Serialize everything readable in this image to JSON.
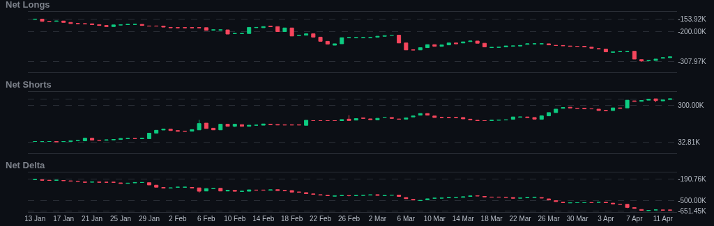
{
  "chart_data": [
    {
      "type": "candlestick",
      "title": "Net Longs",
      "x": [
        "--01-13",
        "--01-14",
        "--01-15",
        "--01-16",
        "--01-17",
        "--01-18",
        "--01-19",
        "--01-20",
        "--01-21",
        "--01-22",
        "--01-23",
        "--01-24",
        "--01-25",
        "--01-26",
        "--01-27",
        "--01-28",
        "--01-29",
        "--01-30",
        "--01-31",
        "--02-01",
        "--02-02",
        "--02-03",
        "--02-04",
        "--02-05",
        "--02-06",
        "--02-07",
        "--02-08",
        "--02-09",
        "--02-10",
        "--02-11",
        "--02-12",
        "--02-13",
        "--02-14",
        "--02-15",
        "--02-16",
        "--02-17",
        "--02-18",
        "--02-19",
        "--02-20",
        "--02-21",
        "--02-22",
        "--02-23",
        "--02-24",
        "--02-25",
        "--02-26",
        "--02-27",
        "--02-28",
        "--03-01",
        "--03-02",
        "--03-03",
        "--03-04",
        "--03-05",
        "--03-06",
        "--03-07",
        "--03-08",
        "--03-09",
        "--03-10",
        "--03-11",
        "--03-12",
        "--03-13",
        "--03-14",
        "--03-15",
        "--03-16",
        "--03-17",
        "--03-18",
        "--03-19",
        "--03-20",
        "--03-21",
        "--03-22",
        "--03-23",
        "--03-24",
        "--03-25",
        "--03-26",
        "--03-27",
        "--03-28",
        "--03-29",
        "--03-30",
        "--03-31",
        "--04-01",
        "--04-02",
        "--04-03",
        "--04-04",
        "--04-05",
        "--04-06",
        "--04-07",
        "--04-08",
        "--04-09",
        "--04-10",
        "--04-11",
        "--04-12"
      ],
      "ohlc": [
        [
          -155,
          -153.92,
          -156,
          -154
        ],
        [
          -154,
          -154,
          -163,
          -162
        ],
        [
          -162,
          -161,
          -163,
          -162
        ],
        [
          -162,
          -160,
          -162,
          -161
        ],
        [
          -161,
          -161,
          -166,
          -166
        ],
        [
          -166,
          -166,
          -170,
          -170
        ],
        [
          -170,
          -169,
          -171,
          -170
        ],
        [
          -171,
          -170,
          -172,
          -171
        ],
        [
          -171,
          -171,
          -174,
          -174
        ],
        [
          -174,
          -174,
          -177,
          -177
        ],
        [
          -177,
          -177,
          -181,
          -181
        ],
        [
          -181,
          -175,
          -181,
          -175
        ],
        [
          -175,
          -174,
          -176,
          -175
        ],
        [
          -174,
          -173,
          -174,
          -173
        ],
        [
          -173,
          -172,
          -174,
          -173
        ],
        [
          -173,
          -173,
          -177,
          -177
        ],
        [
          -179,
          -178,
          -179,
          -179
        ],
        [
          -179,
          -178,
          -180,
          -179
        ],
        [
          -179,
          -179,
          -183,
          -183
        ],
        [
          -184,
          -184,
          -185,
          -185
        ],
        [
          -185,
          -184,
          -186,
          -185
        ],
        [
          -185,
          -184,
          -186,
          -185
        ],
        [
          -185,
          -184,
          -186,
          -185
        ],
        [
          -185,
          -184,
          -186,
          -185
        ],
        [
          -185,
          -185,
          -194,
          -194
        ],
        [
          -193,
          -192,
          -194,
          -193
        ],
        [
          -193,
          -192,
          -194,
          -193
        ],
        [
          -193,
          -193,
          -208,
          -208
        ],
        [
          -206,
          -205,
          -207,
          -206
        ],
        [
          -206,
          -205,
          -207,
          -206
        ],
        [
          -206,
          -184,
          -206,
          -184
        ],
        [
          -185,
          -184,
          -185,
          -184
        ],
        [
          -185,
          -181,
          -185,
          -181
        ],
        [
          -179,
          -179,
          -181,
          -181
        ],
        [
          -181,
          -181,
          -199,
          -199
        ],
        [
          -199,
          -186,
          -199,
          -186
        ],
        [
          -186,
          -186,
          -215,
          -215
        ],
        [
          -213,
          -212,
          -213,
          -212
        ],
        [
          -212,
          -207,
          -212,
          -207
        ],
        [
          -207,
          -207,
          -219,
          -219
        ],
        [
          -219,
          -219,
          -234,
          -234
        ],
        [
          -234,
          -234,
          -244,
          -244
        ],
        [
          -248,
          -243,
          -248,
          -243
        ],
        [
          -243,
          -221,
          -243,
          -221
        ],
        [
          -221,
          -220,
          -222,
          -221
        ],
        [
          -221,
          -220,
          -222,
          -221
        ],
        [
          -221,
          -220,
          -222,
          -221
        ],
        [
          -221,
          -220,
          -222,
          -221
        ],
        [
          -219,
          -216,
          -219,
          -216
        ],
        [
          -216,
          -214,
          -216,
          -214
        ],
        [
          -212,
          -211,
          -213,
          -212
        ],
        [
          -212,
          -212,
          -240,
          -240
        ],
        [
          -240,
          -240,
          -265,
          -265
        ],
        [
          -265,
          -264,
          -266,
          -265
        ],
        [
          -265,
          -257,
          -265,
          -257
        ],
        [
          -257,
          -246,
          -257,
          -246
        ],
        [
          -246,
          -246,
          -252,
          -252
        ],
        [
          -252,
          -247,
          -252,
          -247
        ],
        [
          -247,
          -240,
          -247,
          -240
        ],
        [
          -240,
          -240,
          -243,
          -243
        ],
        [
          -240,
          -236,
          -240,
          -236
        ],
        [
          -235,
          -233,
          -235,
          -233
        ],
        [
          -233,
          -233,
          -241,
          -241
        ],
        [
          -241,
          -241,
          -254,
          -254
        ],
        [
          -257,
          -256,
          -257,
          -256
        ],
        [
          -256,
          -255,
          -256,
          -255
        ],
        [
          -254,
          -251,
          -254,
          -251
        ],
        [
          -251,
          -250,
          -252,
          -251
        ],
        [
          -251,
          -249,
          -251,
          -249
        ],
        [
          -245,
          -243,
          -245,
          -243
        ],
        [
          -243,
          -242,
          -244,
          -243
        ],
        [
          -243,
          -242,
          -244,
          -243
        ],
        [
          -243,
          -243,
          -247,
          -247
        ],
        [
          -249,
          -248,
          -250,
          -249
        ],
        [
          -249,
          -249,
          -250,
          -250
        ],
        [
          -251,
          -251,
          -252,
          -252
        ],
        [
          -252,
          -251,
          -253,
          -252
        ],
        [
          -252,
          -252,
          -254,
          -254
        ],
        [
          -255,
          -255,
          -259,
          -259
        ],
        [
          -261,
          -260,
          -262,
          -261
        ],
        [
          -262,
          -262,
          -272,
          -272
        ],
        [
          -274,
          -272,
          -274,
          -272
        ],
        [
          -271,
          -270,
          -272,
          -271
        ],
        [
          -271,
          -270,
          -272,
          -271
        ],
        [
          -270,
          -270,
          -298,
          -298
        ],
        [
          -300,
          -300,
          -307.97,
          -305
        ],
        [
          -303,
          -302,
          -304,
          -303
        ],
        [
          -303,
          -298,
          -303,
          -298
        ],
        [
          -295,
          -293,
          -295,
          -293
        ],
        [
          -293,
          -290,
          -293,
          -290
        ]
      ],
      "xlim": [
        "--01-12",
        "--04-13"
      ],
      "xticks": [
        {
          "value": "--01-13",
          "label": "13 Jan"
        },
        {
          "value": "--01-17",
          "label": "17 Jan"
        },
        {
          "value": "--01-21",
          "label": "21 Jan"
        },
        {
          "value": "--01-25",
          "label": "25 Jan"
        },
        {
          "value": "--01-29",
          "label": "29 Jan"
        },
        {
          "value": "--02-02",
          "label": "2 Feb"
        },
        {
          "value": "--02-06",
          "label": "6 Feb"
        },
        {
          "value": "--02-10",
          "label": "10 Feb"
        },
        {
          "value": "--02-14",
          "label": "14 Feb"
        },
        {
          "value": "--02-18",
          "label": "18 Feb"
        },
        {
          "value": "--02-22",
          "label": "22 Feb"
        },
        {
          "value": "--02-26",
          "label": "26 Feb"
        },
        {
          "value": "--03-02",
          "label": "2 Mar"
        },
        {
          "value": "--03-06",
          "label": "6 Mar"
        },
        {
          "value": "--03-10",
          "label": "10 Mar"
        },
        {
          "value": "--03-14",
          "label": "14 Mar"
        },
        {
          "value": "--03-18",
          "label": "18 Mar"
        },
        {
          "value": "--03-22",
          "label": "22 Mar"
        },
        {
          "value": "--03-26",
          "label": "26 Mar"
        },
        {
          "value": "--03-30",
          "label": "30 Mar"
        },
        {
          "value": "--04-03",
          "label": "3 Apr"
        },
        {
          "value": "--04-07",
          "label": "7 Apr"
        },
        {
          "value": "--04-11",
          "label": "11 Apr"
        }
      ],
      "ylim": [
        -345,
        -128
      ],
      "yticks": [
        {
          "value": -153.92,
          "label": "-153.92K"
        },
        {
          "value": -200,
          "label": "-200.00K"
        },
        {
          "value": -307.97,
          "label": "-307.97K"
        }
      ],
      "grid": "y",
      "tick_labels": "y"
    },
    {
      "type": "candlestick",
      "title": "Net Shorts",
      "x": [
        "--01-13",
        "--01-14",
        "--01-15",
        "--01-16",
        "--01-17",
        "--01-18",
        "--01-19",
        "--01-20",
        "--01-21",
        "--01-22",
        "--01-23",
        "--01-24",
        "--01-25",
        "--01-26",
        "--01-27",
        "--01-28",
        "--01-29",
        "--01-30",
        "--01-31",
        "--02-01",
        "--02-02",
        "--02-03",
        "--02-04",
        "--02-05",
        "--02-06",
        "--02-07",
        "--02-08",
        "--02-09",
        "--02-10",
        "--02-11",
        "--02-12",
        "--02-13",
        "--02-14",
        "--02-15",
        "--02-16",
        "--02-17",
        "--02-18",
        "--02-19",
        "--02-20",
        "--02-21",
        "--02-22",
        "--02-23",
        "--02-24",
        "--02-25",
        "--02-26",
        "--02-27",
        "--02-28",
        "--03-01",
        "--03-02",
        "--03-03",
        "--03-04",
        "--03-05",
        "--03-06",
        "--03-07",
        "--03-08",
        "--03-09",
        "--03-10",
        "--03-11",
        "--03-12",
        "--03-13",
        "--03-14",
        "--03-15",
        "--03-16",
        "--03-17",
        "--03-18",
        "--03-19",
        "--03-20",
        "--03-21",
        "--03-22",
        "--03-23",
        "--03-24",
        "--03-25",
        "--03-26",
        "--03-27",
        "--03-28",
        "--03-29",
        "--03-30",
        "--03-31",
        "--04-01",
        "--04-02",
        "--04-03",
        "--04-04",
        "--04-05",
        "--04-06",
        "--04-07",
        "--04-08",
        "--04-09",
        "--04-10",
        "--04-11",
        "--04-12"
      ],
      "ohlc": [
        [
          38,
          39,
          37,
          38
        ],
        [
          38,
          39,
          37,
          38
        ],
        [
          38,
          39,
          37,
          38
        ],
        [
          38,
          38,
          36,
          36
        ],
        [
          37,
          38,
          37,
          38
        ],
        [
          38,
          43,
          38,
          43
        ],
        [
          44,
          45,
          43,
          45
        ],
        [
          43,
          66,
          43,
          62
        ],
        [
          62,
          62,
          48,
          48
        ],
        [
          48,
          48,
          47,
          47
        ],
        [
          47,
          50,
          47,
          50
        ],
        [
          50,
          53,
          50,
          53
        ],
        [
          53,
          63,
          53,
          60
        ],
        [
          60,
          61,
          59,
          60
        ],
        [
          60,
          60,
          59,
          59
        ],
        [
          59,
          61,
          59,
          61
        ],
        [
          59,
          99,
          59,
          99
        ],
        [
          99,
          120,
          99,
          120
        ],
        [
          122,
          128,
          122,
          128
        ],
        [
          128,
          128,
          118,
          118
        ],
        [
          118,
          118,
          113,
          113
        ],
        [
          113,
          114,
          112,
          113
        ],
        [
          113,
          125,
          113,
          125
        ],
        [
          123,
          196,
          123,
          169
        ],
        [
          172,
          172,
          133,
          133
        ],
        [
          135,
          135,
          123,
          123
        ],
        [
          123,
          164,
          123,
          164
        ],
        [
          164,
          164,
          149,
          149
        ],
        [
          149,
          164,
          144,
          164
        ],
        [
          161,
          161,
          149,
          149
        ],
        [
          149,
          157,
          149,
          157
        ],
        [
          157,
          158,
          156,
          157
        ],
        [
          157,
          166,
          157,
          166
        ],
        [
          164,
          164,
          162,
          162
        ],
        [
          162,
          162,
          159,
          159
        ],
        [
          159,
          160,
          158,
          159
        ],
        [
          159,
          160,
          158,
          159
        ],
        [
          159,
          160,
          158,
          159
        ],
        [
          156,
          193,
          156,
          193
        ],
        [
          190,
          191,
          189,
          190
        ],
        [
          190,
          191,
          189,
          190
        ],
        [
          190,
          191,
          189,
          190
        ],
        [
          190,
          191,
          189,
          190
        ],
        [
          190,
          198,
          190,
          198
        ],
        [
          201,
          230,
          191,
          191
        ],
        [
          194,
          205,
          194,
          205
        ],
        [
          210,
          210,
          207,
          207
        ],
        [
          203,
          203,
          198,
          198
        ],
        [
          196,
          207,
          196,
          207
        ],
        [
          215,
          216,
          214,
          215
        ],
        [
          213,
          213,
          207,
          207
        ],
        [
          201,
          202,
          200,
          201
        ],
        [
          201,
          210,
          201,
          210
        ],
        [
          217,
          224,
          217,
          224
        ],
        [
          230,
          242,
          230,
          242
        ],
        [
          242,
          242,
          230,
          230
        ],
        [
          224,
          224,
          213,
          213
        ],
        [
          213,
          214,
          212,
          213
        ],
        [
          213,
          214,
          212,
          213
        ],
        [
          213,
          214,
          212,
          213
        ],
        [
          213,
          213,
          203,
          203
        ],
        [
          201,
          201,
          196,
          196
        ],
        [
          193,
          193,
          190,
          190
        ],
        [
          190,
          191,
          189,
          190
        ],
        [
          191,
          193,
          191,
          193
        ],
        [
          193,
          195,
          193,
          195
        ],
        [
          195,
          196,
          195,
          196
        ],
        [
          200,
          217,
          200,
          217
        ],
        [
          215,
          217,
          215,
          217
        ],
        [
          217,
          217,
          213,
          213
        ],
        [
          213,
          213,
          201,
          201
        ],
        [
          200,
          225,
          200,
          225
        ],
        [
          225,
          249,
          225,
          249
        ],
        [
          249,
          274,
          249,
          274
        ],
        [
          280,
          285,
          280,
          285
        ],
        [
          288,
          288,
          283,
          283
        ],
        [
          281,
          281,
          280,
          280
        ],
        [
          280,
          280,
          276,
          276
        ],
        [
          276,
          277,
          275,
          276
        ],
        [
          274,
          274,
          264,
          264
        ],
        [
          264,
          265,
          263,
          264
        ],
        [
          264,
          283,
          264,
          283
        ],
        [
          283,
          283,
          280,
          280
        ],
        [
          283,
          339,
          283,
          339
        ],
        [
          334,
          334,
          331,
          331
        ],
        [
          331,
          337,
          331,
          337
        ],
        [
          339,
          346,
          339,
          346
        ],
        [
          349,
          349,
          325,
          336
        ],
        [
          334,
          341,
          334,
          341
        ],
        [
          344,
          349,
          344,
          349
        ]
      ],
      "xlim": [
        "--01-12",
        "--04-13"
      ],
      "xticks": [
        {
          "value": "--01-13",
          "label": "13 Jan"
        },
        {
          "value": "--01-17",
          "label": "17 Jan"
        },
        {
          "value": "--01-21",
          "label": "21 Jan"
        },
        {
          "value": "--01-25",
          "label": "25 Jan"
        },
        {
          "value": "--01-29",
          "label": "29 Jan"
        },
        {
          "value": "--02-02",
          "label": "2 Feb"
        },
        {
          "value": "--02-06",
          "label": "6 Feb"
        },
        {
          "value": "--02-10",
          "label": "10 Feb"
        },
        {
          "value": "--02-14",
          "label": "14 Feb"
        },
        {
          "value": "--02-18",
          "label": "18 Feb"
        },
        {
          "value": "--02-22",
          "label": "22 Feb"
        },
        {
          "value": "--02-26",
          "label": "26 Feb"
        },
        {
          "value": "--03-02",
          "label": "2 Mar"
        },
        {
          "value": "--03-06",
          "label": "6 Mar"
        },
        {
          "value": "--03-10",
          "label": "10 Mar"
        },
        {
          "value": "--03-14",
          "label": "14 Mar"
        },
        {
          "value": "--03-18",
          "label": "18 Mar"
        },
        {
          "value": "--03-22",
          "label": "22 Mar"
        },
        {
          "value": "--03-26",
          "label": "26 Mar"
        },
        {
          "value": "--03-30",
          "label": "30 Mar"
        },
        {
          "value": "--04-03",
          "label": "3 Apr"
        },
        {
          "value": "--04-07",
          "label": "7 Apr"
        },
        {
          "value": "--04-11",
          "label": "11 Apr"
        }
      ],
      "ylim": [
        -45,
        400
      ],
      "yticks": [
        {
          "value": 32.81,
          "label": "32.81K"
        },
        {
          "value": 300,
          "label": "300.00K"
        },
        {
          "value": 349,
          "label": null
        }
      ],
      "grid": "y",
      "tick_labels": "y"
    },
    {
      "type": "candlestick",
      "title": "Net Delta",
      "x": [
        "--01-13",
        "--01-14",
        "--01-15",
        "--01-16",
        "--01-17",
        "--01-18",
        "--01-19",
        "--01-20",
        "--01-21",
        "--01-22",
        "--01-23",
        "--01-24",
        "--01-25",
        "--01-26",
        "--01-27",
        "--01-28",
        "--01-29",
        "--01-30",
        "--01-31",
        "--02-01",
        "--02-02",
        "--02-03",
        "--02-04",
        "--02-05",
        "--02-06",
        "--02-07",
        "--02-08",
        "--02-09",
        "--02-10",
        "--02-11",
        "--02-12",
        "--02-13",
        "--02-14",
        "--02-15",
        "--02-16",
        "--02-17",
        "--02-18",
        "--02-19",
        "--02-20",
        "--02-21",
        "--02-22",
        "--02-23",
        "--02-24",
        "--02-25",
        "--02-26",
        "--02-27",
        "--02-28",
        "--03-01",
        "--03-02",
        "--03-03",
        "--03-04",
        "--03-05",
        "--03-06",
        "--03-07",
        "--03-08",
        "--03-09",
        "--03-10",
        "--03-11",
        "--03-12",
        "--03-13",
        "--03-14",
        "--03-15",
        "--03-16",
        "--03-17",
        "--03-18",
        "--03-19",
        "--03-20",
        "--03-21",
        "--03-22",
        "--03-23",
        "--03-24",
        "--03-25",
        "--03-26",
        "--03-27",
        "--03-28",
        "--03-29",
        "--03-30",
        "--03-31",
        "--04-01",
        "--04-02",
        "--04-03",
        "--04-04",
        "--04-05",
        "--04-06",
        "--04-07",
        "--04-08",
        "--04-09",
        "--04-10",
        "--04-11",
        "--04-12"
      ],
      "ohlc": [
        [
          -194,
          -190.76,
          -195,
          -193
        ],
        [
          -197,
          -197,
          -204,
          -204
        ],
        [
          -204,
          -204,
          -207,
          -207
        ],
        [
          -205,
          -204,
          -205,
          -204
        ],
        [
          -207,
          -207,
          -210,
          -210
        ],
        [
          -214,
          -214,
          -217,
          -217
        ],
        [
          -217,
          -217,
          -220,
          -220
        ],
        [
          -230,
          -230,
          -237,
          -234
        ],
        [
          -231,
          -230,
          -231,
          -230
        ],
        [
          -230,
          -230,
          -234,
          -234
        ],
        [
          -234,
          -233,
          -235,
          -234
        ],
        [
          -234,
          -233,
          -235,
          -234
        ],
        [
          -243,
          -243,
          -250,
          -250
        ],
        [
          -250,
          -247,
          -250,
          -247
        ],
        [
          -243,
          -237,
          -243,
          -237
        ],
        [
          -237,
          -236,
          -238,
          -237
        ],
        [
          -240,
          -240,
          -273,
          -273
        ],
        [
          -276,
          -276,
          -306,
          -306
        ],
        [
          -309,
          -309,
          -319,
          -319
        ],
        [
          -319,
          -316,
          -319,
          -316
        ],
        [
          -306,
          -305,
          -307,
          -306
        ],
        [
          -306,
          -305,
          -307,
          -306
        ],
        [
          -309,
          -309,
          -316,
          -316
        ],
        [
          -316,
          -316,
          -385,
          -365
        ],
        [
          -362,
          -322,
          -362,
          -326
        ],
        [
          -329,
          -326,
          -329,
          -326
        ],
        [
          -322,
          -322,
          -362,
          -362
        ],
        [
          -362,
          -352,
          -362,
          -352
        ],
        [
          -352,
          -352,
          -365,
          -365
        ],
        [
          -368,
          -365,
          -368,
          -365
        ],
        [
          -365,
          -345,
          -365,
          -345
        ],
        [
          -349,
          -348,
          -350,
          -349
        ],
        [
          -349,
          -348,
          -350,
          -349
        ],
        [
          -349,
          -345,
          -349,
          -345
        ],
        [
          -342,
          -342,
          -355,
          -355
        ],
        [
          -355,
          -354,
          -356,
          -355
        ],
        [
          -355,
          -355,
          -378,
          -378
        ],
        [
          -378,
          -377,
          -379,
          -378
        ],
        [
          -385,
          -385,
          -401,
          -401
        ],
        [
          -405,
          -405,
          -408,
          -408
        ],
        [
          -415,
          -415,
          -421,
          -421
        ],
        [
          -424,
          -424,
          -431,
          -431
        ],
        [
          -437,
          -434,
          -437,
          -434
        ],
        [
          -428,
          -424,
          -428,
          -428
        ],
        [
          -428,
          -428,
          -441,
          -431
        ],
        [
          -428,
          -427,
          -429,
          -428
        ],
        [
          -424,
          -423,
          -425,
          -424
        ],
        [
          -421,
          -418,
          -421,
          -418
        ],
        [
          -415,
          -415,
          -424,
          -424
        ],
        [
          -431,
          -428,
          -431,
          -428
        ],
        [
          -424,
          -421,
          -424,
          -421
        ],
        [
          -421,
          -421,
          -441,
          -441
        ],
        [
          -457,
          -457,
          -474,
          -474
        ],
        [
          -484,
          -484,
          -493,
          -493
        ],
        [
          -503,
          -500,
          -503,
          -500
        ],
        [
          -490,
          -477,
          -490,
          -477
        ],
        [
          -467,
          -466,
          -468,
          -467
        ],
        [
          -467,
          -464,
          -467,
          -464
        ],
        [
          -460,
          -457,
          -460,
          -457
        ],
        [
          -454,
          -453,
          -455,
          -454
        ],
        [
          -454,
          -447,
          -454,
          -447
        ],
        [
          -441,
          -434,
          -441,
          -434
        ],
        [
          -431,
          -431,
          -434,
          -434
        ],
        [
          -441,
          -441,
          -447,
          -447
        ],
        [
          -451,
          -450,
          -452,
          -451
        ],
        [
          -451,
          -450,
          -452,
          -451
        ],
        [
          -451,
          -451,
          -454,
          -454
        ],
        [
          -457,
          -457,
          -467,
          -467
        ],
        [
          -467,
          -464,
          -467,
          -464
        ],
        [
          -460,
          -457,
          -460,
          -457
        ],
        [
          -457,
          -451,
          -457,
          -451
        ],
        [
          -457,
          -457,
          -464,
          -464
        ],
        [
          -477,
          -477,
          -493,
          -493
        ],
        [
          -503,
          -503,
          -516,
          -516
        ],
        [
          -526,
          -526,
          -530,
          -530
        ],
        [
          -536,
          -533,
          -536,
          -533
        ],
        [
          -533,
          -532,
          -534,
          -533
        ],
        [
          -533,
          -532,
          -534,
          -533
        ],
        [
          -530,
          -530,
          -533,
          -533
        ],
        [
          -526,
          -525,
          -527,
          -526
        ],
        [
          -526,
          -526,
          -533,
          -533
        ],
        [
          -539,
          -539,
          -549,
          -549
        ],
        [
          -553,
          -553,
          -556,
          -556
        ],
        [
          -556,
          -556,
          -612,
          -602
        ],
        [
          -605,
          -605,
          -615,
          -615
        ],
        [
          -632,
          -632,
          -645,
          -645
        ],
        [
          -648,
          -645,
          -651.45,
          -645
        ],
        [
          -638,
          -637,
          -639,
          -638
        ],
        [
          -641,
          -640,
          -642,
          -641
        ],
        [
          -641,
          -640,
          -642,
          -641
        ]
      ],
      "xlim": [
        "--01-12",
        "--04-13"
      ],
      "xticks": [
        {
          "value": "--01-13",
          "label": "13 Jan"
        },
        {
          "value": "--01-17",
          "label": "17 Jan"
        },
        {
          "value": "--01-21",
          "label": "21 Jan"
        },
        {
          "value": "--01-25",
          "label": "25 Jan"
        },
        {
          "value": "--01-29",
          "label": "29 Jan"
        },
        {
          "value": "--02-02",
          "label": "2 Feb"
        },
        {
          "value": "--02-06",
          "label": "6 Feb"
        },
        {
          "value": "--02-10",
          "label": "10 Feb"
        },
        {
          "value": "--02-14",
          "label": "14 Feb"
        },
        {
          "value": "--02-18",
          "label": "18 Feb"
        },
        {
          "value": "--02-22",
          "label": "22 Feb"
        },
        {
          "value": "--02-26",
          "label": "26 Feb"
        },
        {
          "value": "--03-02",
          "label": "2 Mar"
        },
        {
          "value": "--03-06",
          "label": "6 Mar"
        },
        {
          "value": "--03-10",
          "label": "10 Mar"
        },
        {
          "value": "--03-14",
          "label": "14 Mar"
        },
        {
          "value": "--03-18",
          "label": "18 Mar"
        },
        {
          "value": "--03-22",
          "label": "22 Mar"
        },
        {
          "value": "--03-26",
          "label": "26 Mar"
        },
        {
          "value": "--03-30",
          "label": "30 Mar"
        },
        {
          "value": "--04-03",
          "label": "3 Apr"
        },
        {
          "value": "--04-07",
          "label": "7 Apr"
        },
        {
          "value": "--04-11",
          "label": "11 Apr"
        }
      ],
      "ylim": [
        -670,
        -90
      ],
      "yticks": [
        {
          "value": -190.76,
          "label": "-190.76K"
        },
        {
          "value": -500,
          "label": "-500.00K"
        },
        {
          "value": -651.45,
          "label": "-651.45K"
        }
      ],
      "grid": "y"
    }
  ]
}
